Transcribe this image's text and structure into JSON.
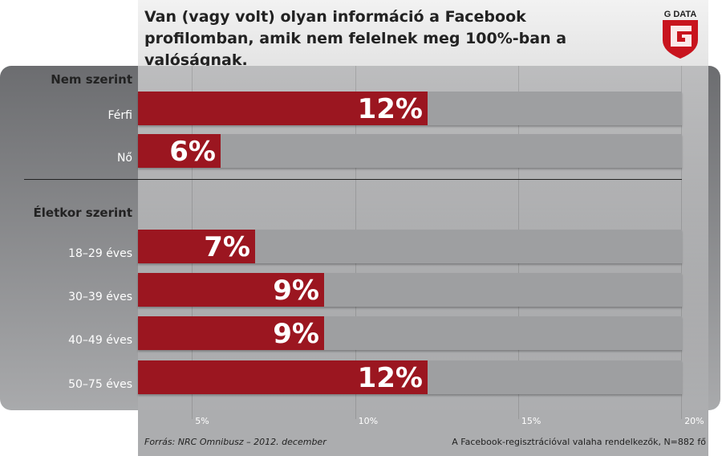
{
  "title": "Van (vagy volt) olyan információ a Facebook profilomban, amik nem felelnek meg 100%-ban a valóságnak.",
  "logo_text": "G DATA",
  "colors": {
    "bar": "#9b1620",
    "track": "#9e9fa1"
  },
  "chart_data": {
    "type": "bar",
    "orientation": "horizontal",
    "title": "Van (vagy volt) olyan információ a Facebook profilomban, amik nem felelnek meg 100%-ban a valóságnak.",
    "xlim": [
      0,
      20
    ],
    "ticks": [
      "5%",
      "10%",
      "15%",
      "20%"
    ],
    "tick_values": [
      5,
      10,
      15,
      20
    ],
    "groups": [
      {
        "name": "Nem szerint",
        "categories": [
          "Férfi",
          "Nő"
        ],
        "values": [
          12,
          6
        ],
        "labels": [
          "12%",
          "6%"
        ]
      },
      {
        "name": "Életkor szerint",
        "categories": [
          "18–29 éves",
          "30–39 éves",
          "40–49 éves",
          "50–75 éves"
        ],
        "values": [
          7,
          9,
          9,
          12
        ],
        "labels": [
          "7%",
          "9%",
          "9%",
          "12%"
        ]
      }
    ]
  },
  "footer": {
    "source": "Forrás: NRC Omnibusz – 2012. december",
    "sample": "A Facebook-regisztrációval valaha rendelkezők, N=882 fő"
  }
}
